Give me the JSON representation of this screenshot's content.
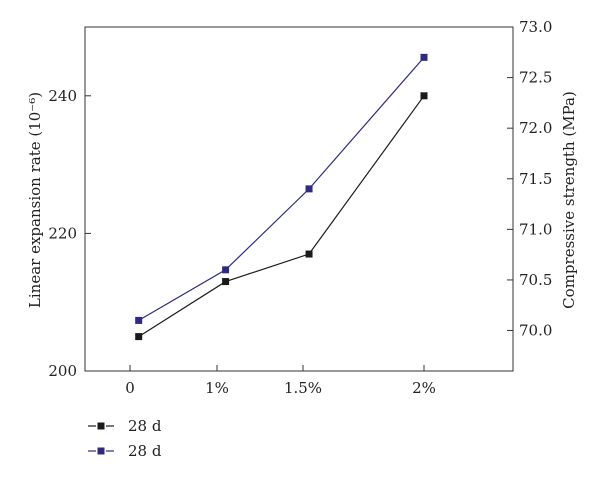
{
  "chart_data": {
    "type": "line",
    "categories": [
      "0",
      "1%",
      "1.5%",
      "2%"
    ],
    "ylabel_left": "Linear expansion rate (10⁻⁶)",
    "ylabel_right": "Compressive strength (MPa)",
    "ylim_left": [
      200,
      250
    ],
    "ylim_right": [
      69.6,
      73.0
    ],
    "y_ticks_left": [
      "200",
      "220",
      "240"
    ],
    "y_ticks_right": [
      "70.0",
      "70.5",
      "71.0",
      "71.5",
      "72.0",
      "72.5",
      "73.0"
    ],
    "grid": false,
    "legend_position": "bottom-left",
    "series": [
      {
        "name": "28 d",
        "axis": "left",
        "color": "#1a1a1a",
        "x": [
          0.1,
          1.1,
          2.05,
          3.0
        ],
        "values": [
          205,
          213,
          217,
          240
        ]
      },
      {
        "name": "28 d",
        "axis": "right",
        "color": "#2e2a7f",
        "x": [
          0.1,
          1.1,
          2.05,
          3.0
        ],
        "values": [
          70.1,
          70.6,
          71.4,
          72.7
        ]
      }
    ]
  }
}
